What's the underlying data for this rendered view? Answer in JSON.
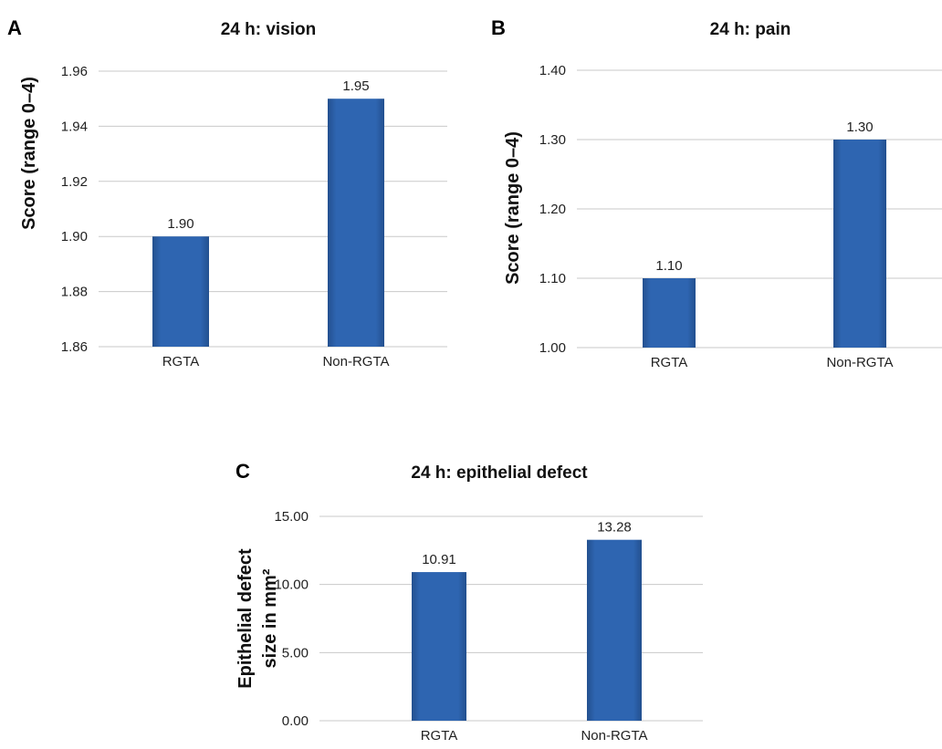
{
  "chart_data": [
    {
      "panel": "A",
      "type": "bar",
      "title": "24 h: vision",
      "ylabel": "Score (range 0–4)",
      "xlabel": "",
      "categories": [
        "RGTA",
        "Non-RGTA"
      ],
      "values": [
        1.9,
        1.95
      ],
      "value_labels": [
        "1.90",
        "1.95"
      ],
      "ylim": [
        1.86,
        1.96
      ],
      "yticks": [
        "1.86",
        "1.88",
        "1.90",
        "1.92",
        "1.94",
        "1.96"
      ],
      "grid": true,
      "legend": "none"
    },
    {
      "panel": "B",
      "type": "bar",
      "title": "24 h: pain",
      "ylabel": "Score (range 0–4)",
      "xlabel": "",
      "categories": [
        "RGTA",
        "Non-RGTA"
      ],
      "values": [
        1.1,
        1.3
      ],
      "value_labels": [
        "1.10",
        "1.30"
      ],
      "ylim": [
        1.0,
        1.4
      ],
      "yticks": [
        "1.00",
        "1.10",
        "1.20",
        "1.30",
        "1.40"
      ],
      "grid": true,
      "legend": "none"
    },
    {
      "panel": "C",
      "type": "bar",
      "title": "24 h: epithelial defect",
      "ylabel": [
        "Epithelial defect",
        "size in mm²"
      ],
      "xlabel": "",
      "categories": [
        "RGTA",
        "Non-RGTA"
      ],
      "values": [
        10.91,
        13.28
      ],
      "value_labels": [
        "10.91",
        "13.28"
      ],
      "ylim": [
        0,
        15
      ],
      "yticks": [
        "0.00",
        "5.00",
        "10.00",
        "15.00"
      ],
      "grid": true,
      "legend": "none"
    }
  ],
  "colors": {
    "bar": "#2e65b1",
    "bar_shade": "#23508f",
    "grid": "#c9c9c9"
  }
}
